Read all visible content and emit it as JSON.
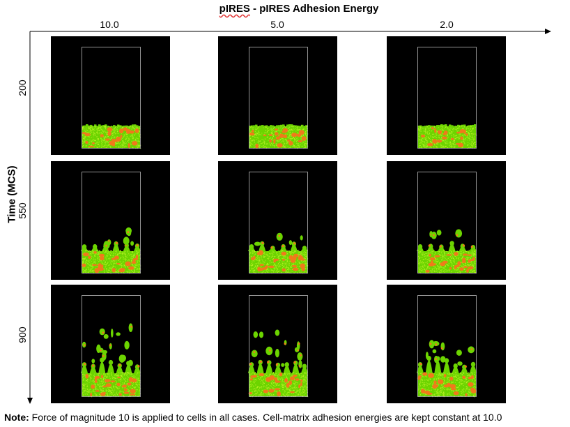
{
  "figure": {
    "title_prefix": "pIRES",
    "title_rest": " - pIRES Adhesion Energy",
    "columns": [
      "10.0",
      "5.0",
      "2.0"
    ],
    "rows": [
      "200",
      "550",
      "900"
    ],
    "y_axis_title": "Time (MCS)",
    "note_bold": "Note:",
    "note_text": " Force of magnitude 10 is applied to cells in all cases. Cell-matrix adhesion energies are kept constant at 10.0"
  },
  "colors": {
    "panel_background": "#000000",
    "container_outline": "#bbbbbb",
    "cell_green": "#6cd400",
    "cell_light": "#b6ef22",
    "cell_orange": "#f07a1a"
  }
}
